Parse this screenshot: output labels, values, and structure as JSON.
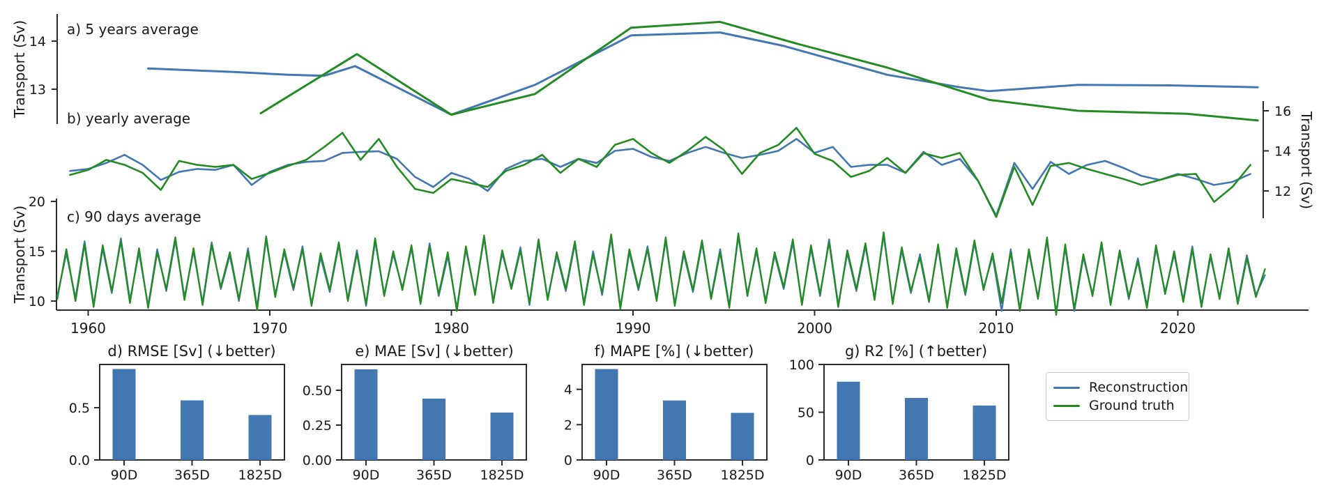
{
  "figure": {
    "colors": {
      "reconstruction": "#4377b2",
      "ground_truth": "#228b22",
      "bar": "#4377b2",
      "axis": "#2b2b2b"
    },
    "legend": {
      "items": [
        {
          "label": "Reconstruction",
          "color": "#4377b2"
        },
        {
          "label": "Ground truth",
          "color": "#228b22"
        }
      ]
    }
  },
  "chart_data": [
    {
      "id": "a",
      "type": "line",
      "title": "a) 5 years average",
      "ylabel": "Transport (Sv)",
      "yticks": [
        13,
        14
      ],
      "legend_position": "outside-bottom-right",
      "grid": false,
      "series": [
        {
          "name": "Reconstruction",
          "points": [
            [
              1963.3,
              13.43
            ],
            [
              1968,
              13.36
            ],
            [
              1971,
              13.3
            ],
            [
              1973,
              13.28
            ],
            [
              1974.7,
              13.48
            ],
            [
              1980,
              12.47
            ],
            [
              1984.6,
              13.09
            ],
            [
              1989.9,
              14.12
            ],
            [
              1994.8,
              14.18
            ],
            [
              1998.3,
              13.9
            ],
            [
              2004,
              13.3
            ],
            [
              2008,
              13.04
            ],
            [
              2009.6,
              12.96
            ],
            [
              2014.5,
              13.09
            ],
            [
              2019.5,
              13.08
            ],
            [
              2024.4,
              13.04
            ]
          ]
        },
        {
          "name": "Ground truth",
          "points": [
            [
              1969.5,
              12.5
            ],
            [
              1974.8,
              13.73
            ],
            [
              1980,
              12.47
            ],
            [
              1984.6,
              12.9
            ],
            [
              1989.9,
              14.28
            ],
            [
              1994.8,
              14.4
            ],
            [
              1999,
              13.95
            ],
            [
              2004,
              13.45
            ],
            [
              2008,
              12.97
            ],
            [
              2009.6,
              12.78
            ],
            [
              2014.5,
              12.55
            ],
            [
              2020.5,
              12.49
            ],
            [
              2024.4,
              12.35
            ]
          ]
        }
      ]
    },
    {
      "id": "b",
      "type": "line",
      "title": "b) yearly average",
      "ylabel": "Transport (Sv)",
      "yticks": [
        12,
        14,
        16
      ],
      "x_start": 1959,
      "x_step": 1,
      "grid": false,
      "series": [
        {
          "name": "Reconstruction",
          "values": [
            13.0,
            13.1,
            13.4,
            13.8,
            13.3,
            12.55,
            12.95,
            13.1,
            13.05,
            13.3,
            12.3,
            12.95,
            13.3,
            13.45,
            13.5,
            13.9,
            13.95,
            13.98,
            13.6,
            12.7,
            12.2,
            12.9,
            12.6,
            12.0,
            13.1,
            13.5,
            13.6,
            13.2,
            13.6,
            13.4,
            14.0,
            14.1,
            13.7,
            13.5,
            13.9,
            14.2,
            13.9,
            13.65,
            13.8,
            14.0,
            14.6,
            13.9,
            14.2,
            13.2,
            13.3,
            13.3,
            12.9,
            13.95,
            13.3,
            13.6,
            12.5,
            10.75,
            13.4,
            12.1,
            13.45,
            12.85,
            13.3,
            13.5,
            13.15,
            12.75,
            12.55,
            12.85,
            12.6,
            12.3,
            12.45,
            12.85
          ]
        },
        {
          "name": "Ground truth",
          "values": [
            12.8,
            13.05,
            13.55,
            13.3,
            12.9,
            12.05,
            13.5,
            13.3,
            13.2,
            13.3,
            12.6,
            12.9,
            13.25,
            13.55,
            14.2,
            14.9,
            13.55,
            14.6,
            13.2,
            12.1,
            11.9,
            12.6,
            12.4,
            12.2,
            13.0,
            13.3,
            13.8,
            12.9,
            13.6,
            13.2,
            14.3,
            14.6,
            13.9,
            13.4,
            14.0,
            14.7,
            14.05,
            12.85,
            13.9,
            14.3,
            15.15,
            13.85,
            13.5,
            12.7,
            13.0,
            13.65,
            12.9,
            13.88,
            13.65,
            13.9,
            12.5,
            10.7,
            13.2,
            11.3,
            13.25,
            13.4,
            13.1,
            12.85,
            12.6,
            12.3,
            12.55,
            12.8,
            12.85,
            11.45,
            12.2,
            13.3
          ]
        }
      ]
    },
    {
      "id": "c",
      "type": "line",
      "title": "c) 90 days average",
      "ylabel": "Transport (Sv)",
      "yticks": [
        10,
        15,
        20
      ],
      "xticks": [
        1960,
        1970,
        1980,
        1990,
        2000,
        2010,
        2020
      ],
      "x_start": 1958.3,
      "x_step": 0.5,
      "grid": false,
      "series": [
        {
          "name": "Reconstruction",
          "values": [
            10.5,
            14.8,
            10.3,
            16.0,
            9.6,
            15.3,
            10.8,
            16.3,
            10.1,
            14.9,
            9.5,
            15.2,
            11.0,
            16.1,
            10.4,
            15.0,
            9.8,
            15.9,
            11.2,
            14.6,
            10.0,
            15.3,
            9.4,
            16.2,
            10.6,
            14.9,
            11.1,
            15.5,
            9.7,
            14.4,
            10.9,
            15.6,
            10.2,
            15.1,
            9.5,
            16.0,
            10.7,
            14.7,
            11.3,
            15.3,
            9.9,
            15.8,
            10.5,
            14.5,
            9.3,
            15.2,
            10.8,
            16.3,
            10.0,
            14.8,
            11.4,
            15.4,
            9.6,
            15.9,
            10.3,
            14.6,
            11.0,
            15.7,
            9.8,
            15.0,
            10.6,
            16.4,
            9.4,
            14.9,
            11.1,
            15.5,
            10.2,
            16.1,
            9.7,
            14.7,
            10.9,
            15.8,
            10.4,
            15.2,
            9.5,
            16.5,
            10.7,
            15.0,
            10.0,
            14.6,
            11.2,
            15.9,
            9.8,
            15.3,
            10.5,
            16.2,
            9.6,
            14.8,
            11.0,
            15.5,
            10.3,
            16.6,
            9.9,
            15.1,
            10.8,
            14.7,
            10.1,
            15.4,
            9.5,
            15.0,
            10.6,
            15.8,
            11.3,
            14.5,
            9.0,
            15.2,
            9.2,
            14.9,
            10.4,
            16.1,
            8.8,
            15.4,
            9.0,
            14.4,
            10.7,
            15.6,
            9.8,
            14.8,
            10.2,
            14.3,
            9.5,
            15.3,
            10.9,
            14.7,
            10.1,
            15.5,
            9.6,
            14.4,
            10.4,
            15.0,
            9.9,
            14.6,
            10.6,
            12.6
          ]
        },
        {
          "name": "Ground truth",
          "values": [
            10.2,
            15.2,
            10.0,
            15.7,
            9.4,
            15.6,
            11.0,
            16.0,
            9.8,
            15.3,
            9.3,
            14.9,
            11.2,
            16.4,
            10.1,
            15.3,
            9.6,
            15.6,
            11.4,
            14.9,
            10.2,
            15.0,
            9.1,
            16.5,
            10.4,
            15.2,
            11.3,
            15.2,
            9.5,
            14.8,
            11.1,
            15.9,
            10.0,
            14.8,
            9.7,
            16.3,
            10.5,
            15.0,
            11.1,
            15.6,
            9.7,
            15.5,
            10.7,
            14.9,
            9.0,
            15.5,
            10.6,
            16.6,
            9.8,
            15.1,
            11.2,
            15.1,
            9.8,
            16.2,
            10.1,
            14.9,
            11.2,
            16.0,
            9.6,
            14.7,
            10.8,
            16.7,
            9.2,
            15.2,
            11.3,
            15.2,
            10.0,
            16.4,
            9.5,
            15.0,
            11.1,
            16.1,
            10.2,
            14.9,
            9.3,
            16.8,
            10.5,
            15.3,
            9.8,
            14.9,
            11.4,
            16.2,
            9.6,
            15.6,
            10.7,
            15.9,
            9.4,
            15.1,
            11.2,
            15.8,
            10.1,
            16.9,
            9.7,
            15.4,
            11.0,
            14.4,
            9.9,
            15.7,
            9.3,
            15.3,
            10.8,
            16.1,
            11.1,
            14.8,
            9.8,
            14.9,
            9.0,
            15.2,
            10.2,
            16.4,
            8.6,
            15.7,
            9.2,
            14.7,
            10.5,
            15.9,
            9.6,
            15.1,
            10.4,
            14.0,
            9.3,
            15.6,
            10.7,
            15.0,
            9.9,
            15.2,
            9.4,
            14.7,
            10.2,
            15.3,
            9.7,
            14.3,
            10.4,
            13.2
          ]
        }
      ]
    },
    {
      "id": "d",
      "type": "bar",
      "title": "d) RMSE [Sv] (↓better)",
      "categories": [
        "90D",
        "365D",
        "1825D"
      ],
      "values": [
        0.87,
        0.57,
        0.43
      ],
      "yticks": [
        {
          "v": 0,
          "label": "0.0"
        },
        {
          "v": 0.5,
          "label": "0.5"
        }
      ],
      "ymax": 0.913
    },
    {
      "id": "e",
      "type": "bar",
      "title": "e) MAE [Sv] (↓better)",
      "categories": [
        "90D",
        "365D",
        "1825D"
      ],
      "values": [
        0.65,
        0.44,
        0.34
      ],
      "yticks": [
        {
          "v": 0,
          "label": "0.00"
        },
        {
          "v": 0.25,
          "label": "0.25"
        },
        {
          "v": 0.5,
          "label": "0.50"
        }
      ],
      "ymax": 0.685
    },
    {
      "id": "f",
      "type": "bar",
      "title": "f) MAPE [%] (↓better)",
      "categories": [
        "90D",
        "365D",
        "1825D"
      ],
      "values": [
        5.15,
        3.37,
        2.67
      ],
      "yticks": [
        {
          "v": 0,
          "label": "0"
        },
        {
          "v": 2,
          "label": "2"
        },
        {
          "v": 4,
          "label": "4"
        }
      ],
      "ymax": 5.41
    },
    {
      "id": "g",
      "type": "bar",
      "title": "g) R2 [%] (↑better)",
      "categories": [
        "90D",
        "365D",
        "1825D"
      ],
      "values": [
        82,
        65,
        57
      ],
      "yticks": [
        {
          "v": 0,
          "label": "0"
        },
        {
          "v": 50,
          "label": "50"
        },
        {
          "v": 100,
          "label": "100"
        }
      ],
      "ymax": 100
    }
  ]
}
